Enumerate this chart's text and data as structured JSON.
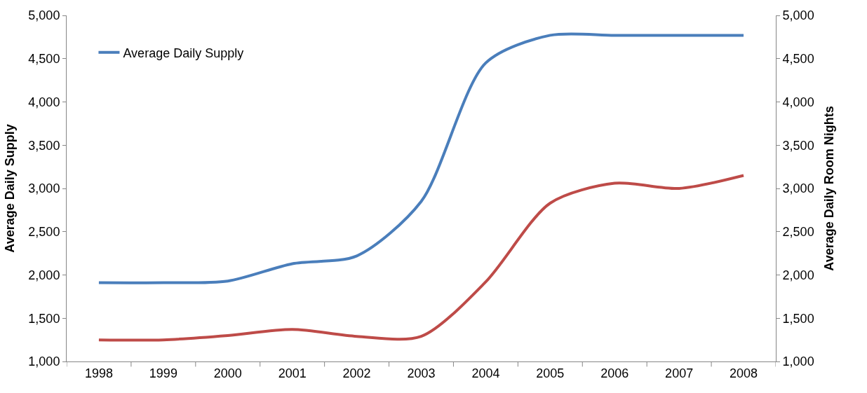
{
  "chart_data": {
    "type": "line",
    "categories": [
      "1998",
      "1999",
      "2000",
      "2001",
      "2002",
      "2003",
      "2004",
      "2005",
      "2006",
      "2007",
      "2008"
    ],
    "ylabel": "Average Daily Supply",
    "y2label": "Average Daily Room Nights",
    "ylim": [
      1000,
      5000
    ],
    "yticks": [
      {
        "value": 1000,
        "label": "1,000"
      },
      {
        "value": 1500,
        "label": "1,500"
      },
      {
        "value": 2000,
        "label": "2,000"
      },
      {
        "value": 2500,
        "label": "2,500"
      },
      {
        "value": 3000,
        "label": "3,000"
      },
      {
        "value": 3500,
        "label": "3,500"
      },
      {
        "value": 4000,
        "label": "4,000"
      },
      {
        "value": 4500,
        "label": "4,500"
      },
      {
        "value": 5000,
        "label": "5,000"
      }
    ],
    "y2lim": [
      1000,
      5000
    ],
    "y2ticks": [
      {
        "value": 1000,
        "label": "1,000"
      },
      {
        "value": 1500,
        "label": "1,500"
      },
      {
        "value": 2000,
        "label": "2,000"
      },
      {
        "value": 2500,
        "label": "2,500"
      },
      {
        "value": 3000,
        "label": "3,000"
      },
      {
        "value": 3500,
        "label": "3,500"
      },
      {
        "value": 4000,
        "label": "4,000"
      },
      {
        "value": 4500,
        "label": "4,500"
      },
      {
        "value": 5000,
        "label": "5,000"
      }
    ],
    "legend": "top left",
    "marker": "none",
    "line_style": "solid",
    "series": [
      {
        "name": "Average Daily Supply",
        "color": "#4a7ebb",
        "values": [
          1910,
          1910,
          1930,
          2130,
          2220,
          2850,
          4450,
          4770,
          4770,
          4770,
          4770
        ]
      },
      {
        "color": "#be4b48",
        "axis": "y2",
        "values": [
          1250,
          1250,
          1300,
          1370,
          1290,
          1290,
          1920,
          2830,
          3060,
          3000,
          3150
        ]
      }
    ]
  }
}
